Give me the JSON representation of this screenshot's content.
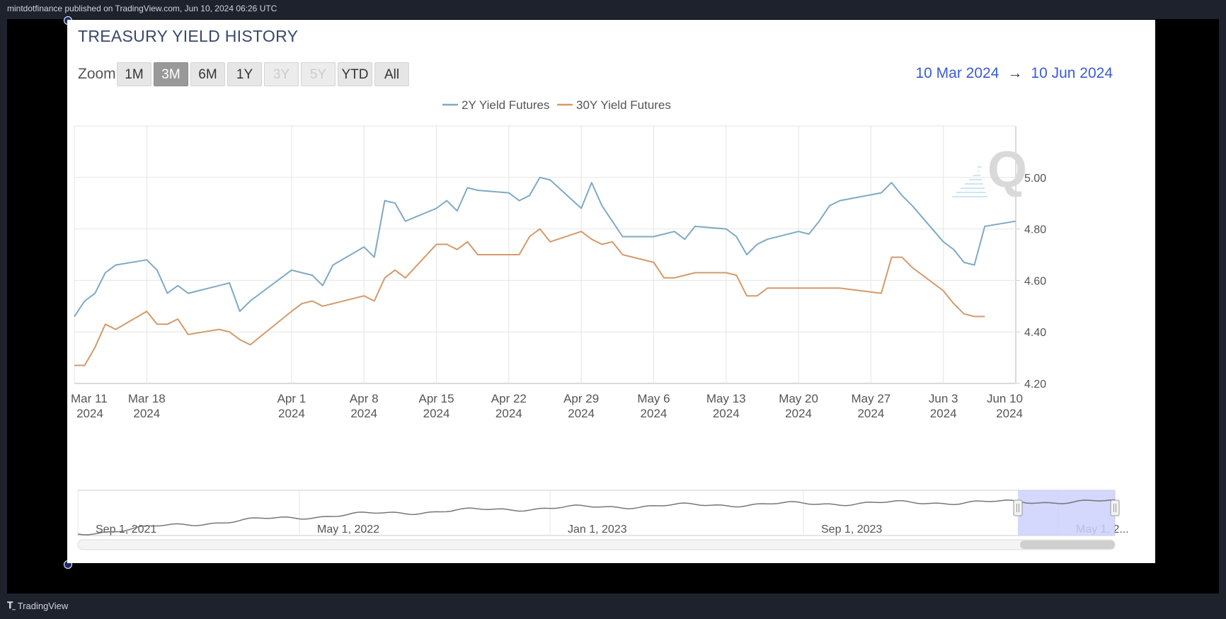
{
  "header": {
    "publisher_line": "mintdotfinance published on TradingView.com, Jun 10, 2024 06:26 UTC"
  },
  "footer": {
    "brand": "TradingView",
    "logo_icon": "tradingview-logo-icon"
  },
  "chart_title": "TREASURY YIELD HISTORY",
  "zoom": {
    "label": "Zoom",
    "buttons": [
      {
        "label": "1M",
        "state": "normal"
      },
      {
        "label": "3M",
        "state": "active"
      },
      {
        "label": "6M",
        "state": "normal"
      },
      {
        "label": "1Y",
        "state": "normal"
      },
      {
        "label": "3Y",
        "state": "disabled"
      },
      {
        "label": "5Y",
        "state": "disabled"
      },
      {
        "label": "YTD",
        "state": "normal"
      },
      {
        "label": "All",
        "state": "normal"
      }
    ]
  },
  "range": {
    "from": "10 Mar 2024",
    "arrow": "→",
    "to": "10 Jun 2024"
  },
  "navigator": {
    "labels": [
      "Sep 1, 2021",
      "May 1, 2022",
      "Jan 1, 2023",
      "Sep 1, 2023",
      "May 1, 2..."
    ],
    "selection_from": "2024-03-10",
    "selection_to": "2024-06-10"
  },
  "colors": {
    "series_2y": "#7fa9c6",
    "series_30y": "#d49a6a",
    "navigator_fill": "#ccd1fb",
    "range_text": "#3a5bd8",
    "title": "#39476b"
  },
  "chart_data": {
    "type": "line",
    "title": "TREASURY YIELD HISTORY",
    "xlabel": "",
    "ylabel": "",
    "x_ticks": [
      {
        "date": "2024-03-11",
        "line1": "Mar 11",
        "line2": "2024"
      },
      {
        "date": "2024-03-18",
        "line1": "Mar 18",
        "line2": "2024"
      },
      {
        "date": "2024-04-01",
        "line1": "Apr 1",
        "line2": "2024"
      },
      {
        "date": "2024-04-08",
        "line1": "Apr 8",
        "line2": "2024"
      },
      {
        "date": "2024-04-15",
        "line1": "Apr 15",
        "line2": "2024"
      },
      {
        "date": "2024-04-22",
        "line1": "Apr 22",
        "line2": "2024"
      },
      {
        "date": "2024-04-29",
        "line1": "Apr 29",
        "line2": "2024"
      },
      {
        "date": "2024-05-06",
        "line1": "May 6",
        "line2": "2024"
      },
      {
        "date": "2024-05-13",
        "line1": "May 13",
        "line2": "2024"
      },
      {
        "date": "2024-05-20",
        "line1": "May 20",
        "line2": "2024"
      },
      {
        "date": "2024-05-27",
        "line1": "May 27",
        "line2": "2024"
      },
      {
        "date": "2024-06-03",
        "line1": "Jun 3",
        "line2": "2024"
      },
      {
        "date": "2024-06-10",
        "line1": "Jun 10",
        "line2": "2024"
      }
    ],
    "y_ticks": [
      "4.20",
      "4.40",
      "4.60",
      "4.80",
      "5.00"
    ],
    "ylim": [
      4.2,
      5.2
    ],
    "xlim": [
      "2024-03-11",
      "2024-06-10"
    ],
    "grid": true,
    "legend_position": "top-center",
    "series": [
      {
        "name": "2Y Yield Futures",
        "color": "#7fa9c6",
        "points": [
          [
            "2024-03-11",
            4.46
          ],
          [
            "2024-03-12",
            4.52
          ],
          [
            "2024-03-13",
            4.55
          ],
          [
            "2024-03-14",
            4.63
          ],
          [
            "2024-03-15",
            4.66
          ],
          [
            "2024-03-18",
            4.68
          ],
          [
            "2024-03-19",
            4.64
          ],
          [
            "2024-03-20",
            4.55
          ],
          [
            "2024-03-21",
            4.58
          ],
          [
            "2024-03-22",
            4.55
          ],
          [
            "2024-03-25",
            4.58
          ],
          [
            "2024-03-26",
            4.59
          ],
          [
            "2024-03-27",
            4.48
          ],
          [
            "2024-03-28",
            4.52
          ],
          [
            "2024-04-01",
            4.64
          ],
          [
            "2024-04-02",
            4.63
          ],
          [
            "2024-04-03",
            4.62
          ],
          [
            "2024-04-04",
            4.58
          ],
          [
            "2024-04-05",
            4.66
          ],
          [
            "2024-04-08",
            4.73
          ],
          [
            "2024-04-09",
            4.69
          ],
          [
            "2024-04-10",
            4.91
          ],
          [
            "2024-04-11",
            4.9
          ],
          [
            "2024-04-12",
            4.83
          ],
          [
            "2024-04-15",
            4.88
          ],
          [
            "2024-04-16",
            4.91
          ],
          [
            "2024-04-17",
            4.87
          ],
          [
            "2024-04-18",
            4.96
          ],
          [
            "2024-04-19",
            4.95
          ],
          [
            "2024-04-22",
            4.94
          ],
          [
            "2024-04-23",
            4.91
          ],
          [
            "2024-04-24",
            4.93
          ],
          [
            "2024-04-25",
            5.0
          ],
          [
            "2024-04-26",
            4.99
          ],
          [
            "2024-04-29",
            4.88
          ],
          [
            "2024-04-30",
            4.98
          ],
          [
            "2024-05-01",
            4.89
          ],
          [
            "2024-05-02",
            4.83
          ],
          [
            "2024-05-03",
            4.77
          ],
          [
            "2024-05-06",
            4.77
          ],
          [
            "2024-05-07",
            4.78
          ],
          [
            "2024-05-08",
            4.79
          ],
          [
            "2024-05-09",
            4.76
          ],
          [
            "2024-05-10",
            4.81
          ],
          [
            "2024-05-13",
            4.8
          ],
          [
            "2024-05-14",
            4.77
          ],
          [
            "2024-05-15",
            4.7
          ],
          [
            "2024-05-16",
            4.74
          ],
          [
            "2024-05-17",
            4.76
          ],
          [
            "2024-05-20",
            4.79
          ],
          [
            "2024-05-21",
            4.78
          ],
          [
            "2024-05-22",
            4.83
          ],
          [
            "2024-05-23",
            4.89
          ],
          [
            "2024-05-24",
            4.91
          ],
          [
            "2024-05-28",
            4.94
          ],
          [
            "2024-05-29",
            4.98
          ],
          [
            "2024-05-30",
            4.93
          ],
          [
            "2024-05-31",
            4.89
          ],
          [
            "2024-06-03",
            4.75
          ],
          [
            "2024-06-04",
            4.72
          ],
          [
            "2024-06-05",
            4.67
          ],
          [
            "2024-06-06",
            4.66
          ],
          [
            "2024-06-07",
            4.81
          ],
          [
            "2024-06-10",
            4.83
          ]
        ]
      },
      {
        "name": "30Y Yield Futures",
        "color": "#d49a6a",
        "points": [
          [
            "2024-03-11",
            4.27
          ],
          [
            "2024-03-12",
            4.27
          ],
          [
            "2024-03-13",
            4.34
          ],
          [
            "2024-03-14",
            4.43
          ],
          [
            "2024-03-15",
            4.41
          ],
          [
            "2024-03-18",
            4.48
          ],
          [
            "2024-03-19",
            4.43
          ],
          [
            "2024-03-20",
            4.43
          ],
          [
            "2024-03-21",
            4.45
          ],
          [
            "2024-03-22",
            4.39
          ],
          [
            "2024-03-25",
            4.41
          ],
          [
            "2024-03-26",
            4.4
          ],
          [
            "2024-03-27",
            4.37
          ],
          [
            "2024-03-28",
            4.35
          ],
          [
            "2024-04-01",
            4.48
          ],
          [
            "2024-04-02",
            4.51
          ],
          [
            "2024-04-03",
            4.52
          ],
          [
            "2024-04-04",
            4.5
          ],
          [
            "2024-04-05",
            4.51
          ],
          [
            "2024-04-08",
            4.54
          ],
          [
            "2024-04-09",
            4.52
          ],
          [
            "2024-04-10",
            4.61
          ],
          [
            "2024-04-11",
            4.64
          ],
          [
            "2024-04-12",
            4.61
          ],
          [
            "2024-04-15",
            4.74
          ],
          [
            "2024-04-16",
            4.74
          ],
          [
            "2024-04-17",
            4.72
          ],
          [
            "2024-04-18",
            4.75
          ],
          [
            "2024-04-19",
            4.7
          ],
          [
            "2024-04-22",
            4.7
          ],
          [
            "2024-04-23",
            4.7
          ],
          [
            "2024-04-24",
            4.77
          ],
          [
            "2024-04-25",
            4.8
          ],
          [
            "2024-04-26",
            4.75
          ],
          [
            "2024-04-29",
            4.79
          ],
          [
            "2024-04-30",
            4.76
          ],
          [
            "2024-05-01",
            4.74
          ],
          [
            "2024-05-02",
            4.75
          ],
          [
            "2024-05-03",
            4.7
          ],
          [
            "2024-05-06",
            4.67
          ],
          [
            "2024-05-07",
            4.61
          ],
          [
            "2024-05-08",
            4.61
          ],
          [
            "2024-05-09",
            4.62
          ],
          [
            "2024-05-10",
            4.63
          ],
          [
            "2024-05-13",
            4.63
          ],
          [
            "2024-05-14",
            4.62
          ],
          [
            "2024-05-15",
            4.54
          ],
          [
            "2024-05-16",
            4.54
          ],
          [
            "2024-05-17",
            4.57
          ],
          [
            "2024-05-20",
            4.57
          ],
          [
            "2024-05-21",
            4.57
          ],
          [
            "2024-05-22",
            4.57
          ],
          [
            "2024-05-23",
            4.57
          ],
          [
            "2024-05-24",
            4.57
          ],
          [
            "2024-05-28",
            4.55
          ],
          [
            "2024-05-29",
            4.69
          ],
          [
            "2024-05-30",
            4.69
          ],
          [
            "2024-05-31",
            4.65
          ],
          [
            "2024-06-03",
            4.56
          ],
          [
            "2024-06-04",
            4.51
          ],
          [
            "2024-06-05",
            4.47
          ],
          [
            "2024-06-06",
            4.46
          ],
          [
            "2024-06-07",
            4.46
          ]
        ]
      }
    ]
  }
}
